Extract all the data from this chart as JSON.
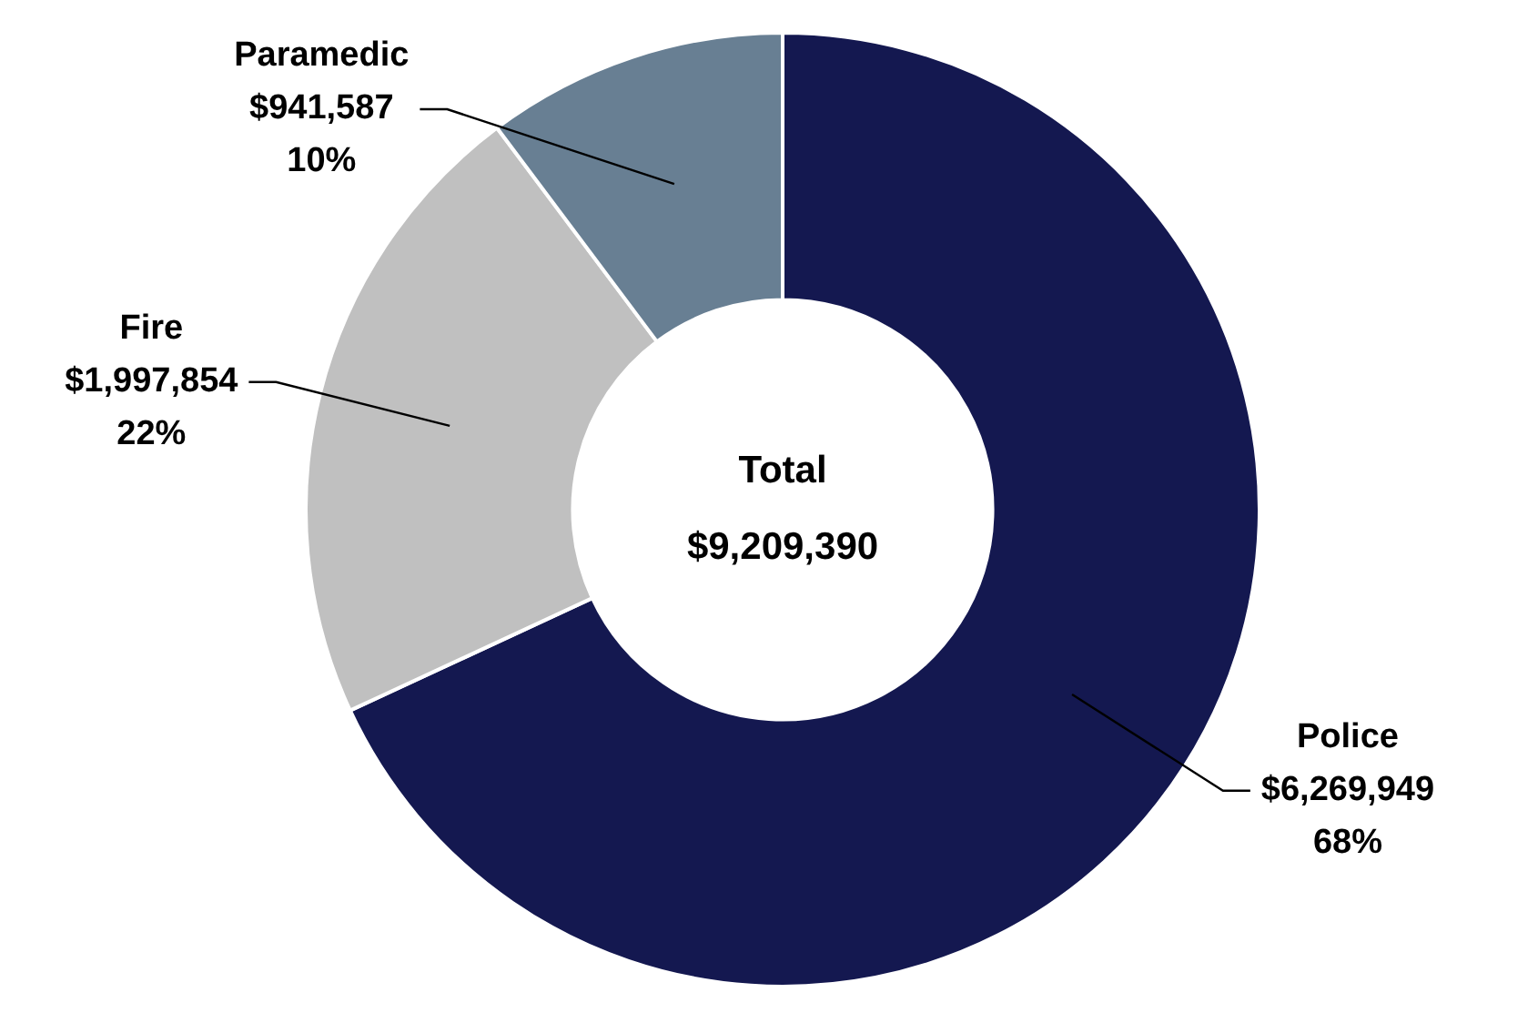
{
  "chart_data": {
    "type": "donut",
    "categories": [
      "Police",
      "Fire",
      "Paramedic"
    ],
    "values": [
      6269949,
      1997854,
      941587
    ],
    "colors": [
      "#141850",
      "#c0c0c0",
      "#687f93"
    ],
    "value_labels": [
      "$6,269,949\n68%",
      "$1,997,854\n22%",
      "$941,587\n10%"
    ],
    "annotations": [
      "Total",
      "$9,209,390"
    ],
    "legend": false
  }
}
